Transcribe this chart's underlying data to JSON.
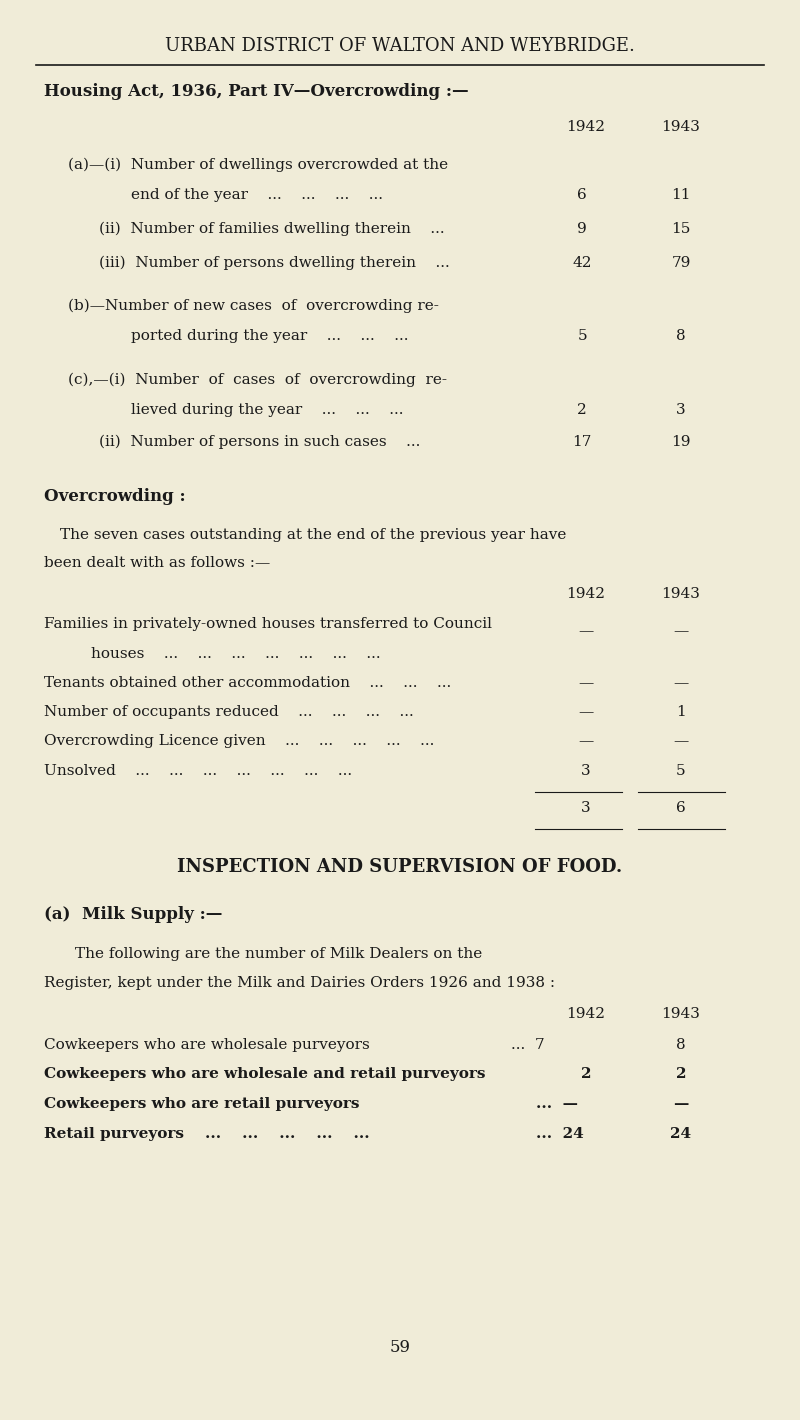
{
  "bg_color": "#f0ecd8",
  "text_color": "#1a1a1a",
  "header_title": "URBAN DISTRICT OF WALTON AND WEYBRIDGE.",
  "section1_title": "Housing Act, 1936, Part IV—Overcrowding :—",
  "overcrowding_title": "Overcrowding :",
  "food_title": "INSPECTION AND SUPERVISION OF FOOD.",
  "milk_subtitle": "(a)  Milk Supply :—",
  "milk_para1": "The following are the number of Milk Dealers on the",
  "milk_para2": "Register, kept under the Milk and Dairies Orders 1926 and 1938 :",
  "page_number": "59"
}
